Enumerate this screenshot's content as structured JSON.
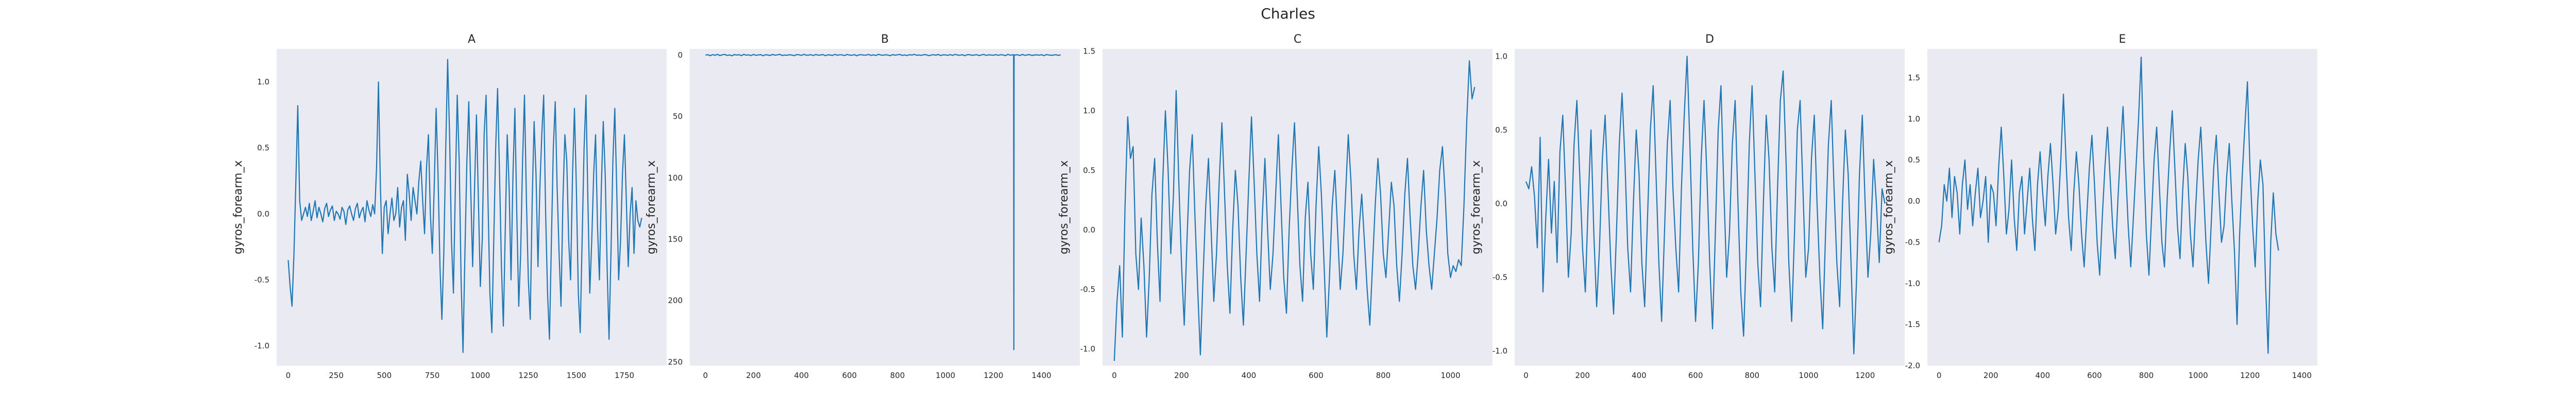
{
  "figure": {
    "title": "Charles"
  },
  "chart_data": [
    {
      "type": "line",
      "title": "A",
      "xlabel": "",
      "ylabel": "gyros_forearm_x",
      "xlim": [
        -60,
        1970
      ],
      "ylim": [
        -1.15,
        1.25
      ],
      "xticks": [
        0,
        250,
        500,
        750,
        1000,
        1250,
        1500,
        1750
      ],
      "yticks": [
        -1.0,
        -0.5,
        0.0,
        0.5,
        1.0
      ],
      "yticklabels": [
        "-1.0",
        "-0.5",
        "0.0",
        "0.5",
        "1.0"
      ],
      "grid": false,
      "series": [
        {
          "x_step": 10,
          "values": [
            -0.35,
            -0.55,
            -0.7,
            -0.3,
            0.25,
            0.82,
            0.1,
            -0.05,
            0.0,
            0.05,
            -0.02,
            0.08,
            -0.05,
            0.02,
            0.1,
            -0.03,
            0.05,
            0.0,
            -0.06,
            0.04,
            0.08,
            -0.02,
            0.03,
            0.06,
            -0.05,
            0.02,
            0.0,
            -0.04,
            0.05,
            0.02,
            -0.08,
            0.03,
            0.06,
            0.0,
            -0.05,
            0.04,
            0.08,
            -0.03,
            0.02,
            0.05,
            -0.06,
            0.1,
            0.03,
            -0.02,
            0.07,
            0.0,
            0.35,
            1.0,
            0.2,
            -0.3,
            0.05,
            0.1,
            -0.15,
            0.0,
            0.12,
            -0.05,
            0.0,
            0.2,
            -0.1,
            0.05,
            0.1,
            -0.2,
            0.3,
            0.15,
            -0.05,
            0.2,
            0.1,
            0.0,
            0.25,
            0.4,
            0.1,
            -0.15,
            0.35,
            0.6,
            0.0,
            -0.3,
            0.2,
            0.8,
            0.3,
            -0.4,
            -0.8,
            -0.3,
            0.5,
            1.17,
            0.6,
            -0.2,
            -0.6,
            0.2,
            0.9,
            0.4,
            -0.5,
            -1.05,
            -0.3,
            0.4,
            0.85,
            0.2,
            -0.4,
            0.2,
            0.75,
            0.1,
            -0.55,
            -0.2,
            0.6,
            0.9,
            0.1,
            -0.6,
            -0.9,
            -0.2,
            0.5,
            0.95,
            0.3,
            -0.4,
            -0.85,
            -0.1,
            0.6,
            0.2,
            -0.5,
            0.3,
            0.8,
            0.0,
            -0.7,
            -0.3,
            0.4,
            0.9,
            0.1,
            -0.5,
            -0.8,
            0.1,
            0.7,
            0.3,
            -0.4,
            0.2,
            0.6,
            0.9,
            0.0,
            -0.6,
            -0.95,
            -0.2,
            0.5,
            0.85,
            0.2,
            -0.3,
            -0.7,
            0.1,
            0.6,
            0.4,
            -0.2,
            -0.5,
            0.3,
            0.8,
            0.2,
            -0.6,
            -0.9,
            -0.2,
            0.5,
            0.9,
            0.1,
            -0.6,
            -0.2,
            0.3,
            0.6,
            -0.1,
            -0.5,
            0.2,
            0.7,
            0.3,
            -0.4,
            -0.95,
            -0.3,
            0.4,
            0.8,
            0.2,
            -0.5,
            -0.2,
            0.3,
            0.6,
            0.1,
            -0.4,
            0.0,
            0.2,
            -0.3,
            0.1,
            -0.05,
            -0.1,
            -0.03
          ]
        }
      ]
    },
    {
      "type": "line",
      "title": "B",
      "xlabel": "",
      "ylabel": "gyros_forearm_x",
      "xlim": [
        -65,
        1560
      ],
      "ylim": [
        -253,
        5
      ],
      "xticks": [
        0,
        200,
        400,
        600,
        800,
        1000,
        1200,
        1400
      ],
      "yticks": [
        0,
        -50,
        -100,
        -150,
        -200,
        -250
      ],
      "yticklabels": [
        "0",
        "50",
        "100",
        "150",
        "200",
        "250"
      ],
      "grid": false,
      "series": [
        {
          "x_step": 10,
          "spike": {
            "x": 1285,
            "y": -240
          },
          "values": [
            0.0,
            0.3,
            -0.5,
            0.4,
            -0.2,
            0.6,
            -0.4,
            0.2,
            0.5,
            -0.3,
            0.1,
            -0.6,
            0.4,
            0.0,
            0.3,
            -0.5,
            0.6,
            -0.1,
            0.2,
            -0.4,
            0.5,
            -0.2,
            0.1,
            0.4,
            -0.6,
            0.3,
            0.0,
            -0.3,
            0.5,
            -0.1,
            0.2,
            0.6,
            -0.4,
            0.1,
            -0.2,
            0.3,
            0.0,
            -0.5,
            0.4,
            0.2,
            -0.3,
            0.6,
            -0.1,
            0.0,
            0.3,
            -0.4,
            0.5,
            -0.2,
            0.1,
            0.4,
            -0.5,
            0.2,
            0.0,
            -0.3,
            0.6,
            -0.2,
            0.3,
            0.1,
            -0.4,
            0.5,
            0.0,
            -0.2,
            0.4,
            -0.6,
            0.2,
            0.3,
            -0.1,
            0.0,
            0.5,
            -0.3,
            0.2,
            -0.4,
            0.6,
            0.1,
            -0.2,
            0.3,
            0.0,
            -0.5,
            0.4,
            -0.1,
            0.2,
            0.5,
            -0.3,
            0.1,
            -0.4,
            0.3,
            0.0,
            0.6,
            -0.2,
            0.1,
            -0.3,
            0.4,
            0.2,
            -0.5,
            0.0,
            0.3,
            -0.1,
            0.5,
            -0.4,
            0.2,
            0.1,
            -0.2,
            0.4,
            -0.3,
            0.6,
            0.0,
            -0.1,
            0.3,
            -0.5,
            0.2,
            0.4,
            -0.2,
            0.0,
            0.3,
            -0.4,
            0.1,
            0.5,
            -0.3,
            0.2,
            0.0,
            -0.1,
            0.4,
            -0.2,
            0.3,
            0.1,
            -0.5,
            0.6,
            -0.1,
            0.2,
            0.0,
            0.3,
            -0.4,
            0.5,
            -0.2,
            0.1,
            0.4,
            -0.3,
            0.0,
            0.2,
            -0.1,
            0.3,
            -0.5,
            0.4,
            0.1,
            -0.2,
            0.0,
            0.3,
            -0.3,
            0.2
          ]
        }
      ]
    },
    {
      "type": "line",
      "title": "C",
      "xlabel": "",
      "ylabel": "gyros_forearm_x",
      "xlim": [
        -35,
        1125
      ],
      "ylim": [
        -1.14,
        1.52
      ],
      "xticks": [
        0,
        200,
        400,
        600,
        800,
        1000
      ],
      "yticks": [
        -1.0,
        -0.5,
        0.0,
        0.5,
        1.0,
        1.5
      ],
      "yticklabels": [
        "-1.0",
        "-0.5",
        "0.0",
        "0.5",
        "1.0",
        "1.5"
      ],
      "grid": false,
      "series": [
        {
          "x_step": 8,
          "values": [
            -1.1,
            -0.6,
            -0.3,
            -0.9,
            0.2,
            0.95,
            0.6,
            0.7,
            -0.2,
            -0.5,
            0.1,
            -0.3,
            -0.9,
            -0.4,
            0.3,
            0.6,
            -0.1,
            -0.6,
            0.4,
            1.0,
            0.5,
            -0.2,
            0.3,
            1.17,
            0.4,
            -0.3,
            -0.8,
            -0.1,
            0.5,
            0.8,
            0.1,
            -0.5,
            -1.05,
            -0.4,
            0.2,
            0.6,
            0.0,
            -0.6,
            -0.2,
            0.4,
            0.9,
            0.3,
            -0.3,
            -0.7,
            0.0,
            0.5,
            0.2,
            -0.4,
            -0.8,
            -0.2,
            0.4,
            0.95,
            0.4,
            -0.2,
            -0.6,
            0.1,
            0.6,
            0.0,
            -0.5,
            -0.2,
            0.3,
            0.8,
            0.2,
            -0.4,
            -0.7,
            0.0,
            0.5,
            0.9,
            0.3,
            -0.3,
            -0.6,
            0.1,
            0.4,
            -0.2,
            -0.5,
            0.2,
            0.7,
            0.3,
            -0.3,
            -0.9,
            -0.4,
            0.2,
            0.5,
            0.0,
            -0.5,
            -0.2,
            0.3,
            0.8,
            0.4,
            -0.2,
            -0.5,
            0.0,
            0.3,
            -0.1,
            -0.5,
            -0.8,
            -0.3,
            0.2,
            0.6,
            0.3,
            -0.2,
            -0.4,
            0.0,
            0.4,
            0.2,
            -0.3,
            -0.6,
            -0.2,
            0.3,
            0.6,
            0.1,
            -0.3,
            -0.5,
            -0.2,
            0.2,
            0.5,
            0.0,
            -0.3,
            -0.5,
            -0.2,
            0.1,
            0.5,
            0.7,
            0.3,
            -0.2,
            -0.4,
            -0.3,
            -0.35,
            -0.25,
            -0.3,
            0.2,
            0.9,
            1.42,
            1.1,
            1.2
          ]
        }
      ]
    },
    {
      "type": "line",
      "title": "D",
      "xlabel": "",
      "ylabel": "gyros_forearm_x",
      "xlim": [
        -40,
        1340
      ],
      "ylim": [
        -1.1,
        1.05
      ],
      "xticks": [
        0,
        200,
        400,
        600,
        800,
        1000,
        1200
      ],
      "yticks": [
        -1.0,
        -0.5,
        0.0,
        0.5,
        1.0
      ],
      "yticklabels": [
        "-1.0",
        "-0.5",
        "0.0",
        "0.5",
        "1.0"
      ],
      "grid": false,
      "series": [
        {
          "x_step": 10,
          "values": [
            0.15,
            0.1,
            0.25,
            0.05,
            -0.3,
            0.45,
            -0.6,
            -0.1,
            0.3,
            -0.2,
            0.15,
            -0.4,
            0.35,
            0.6,
            0.1,
            -0.5,
            -0.2,
            0.4,
            0.7,
            0.2,
            -0.3,
            -0.6,
            0.0,
            0.5,
            -0.2,
            -0.7,
            -0.3,
            0.3,
            0.6,
            0.1,
            -0.4,
            -0.75,
            -0.2,
            0.4,
            0.75,
            0.3,
            -0.3,
            -0.6,
            0.0,
            0.5,
            0.2,
            -0.4,
            -0.7,
            -0.1,
            0.5,
            0.8,
            0.2,
            -0.4,
            -0.8,
            -0.2,
            0.4,
            0.7,
            0.1,
            -0.3,
            -0.6,
            0.1,
            0.6,
            1.0,
            0.4,
            -0.3,
            -0.8,
            -0.4,
            0.3,
            0.7,
            0.2,
            -0.4,
            -0.85,
            -0.2,
            0.5,
            0.8,
            0.1,
            -0.5,
            -0.2,
            0.4,
            0.7,
            0.0,
            -0.6,
            -0.9,
            -0.3,
            0.4,
            0.8,
            0.2,
            -0.4,
            -0.7,
            0.0,
            0.6,
            0.3,
            -0.3,
            -0.6,
            0.1,
            0.7,
            0.9,
            0.3,
            -0.4,
            -0.8,
            -0.2,
            0.5,
            0.7,
            0.1,
            -0.5,
            -0.3,
            0.3,
            0.6,
            0.0,
            -0.5,
            -0.85,
            -0.2,
            0.4,
            0.7,
            0.1,
            -0.4,
            -0.7,
            0.0,
            0.5,
            0.2,
            -0.4,
            -1.02,
            -0.5,
            0.2,
            0.6,
            0.0,
            -0.5,
            -0.2,
            0.3,
            0.0,
            -0.4,
            0.1,
            0.0
          ]
        }
      ]
    },
    {
      "type": "line",
      "title": "E",
      "xlabel": "",
      "ylabel": "gyros_forearm_x",
      "xlim": [
        -45,
        1460
      ],
      "ylim": [
        -2.0,
        1.85
      ],
      "xticks": [
        0,
        200,
        400,
        600,
        800,
        1000,
        1200,
        1400
      ],
      "yticks": [
        -2.0,
        -1.5,
        -1.0,
        -0.5,
        0.0,
        0.5,
        1.0,
        1.5
      ],
      "yticklabels": [
        "-2.0",
        "-1.5",
        "-1.0",
        "-0.5",
        "0.0",
        "0.5",
        "1.0",
        "1.5"
      ],
      "grid": false,
      "series": [
        {
          "x_step": 10,
          "values": [
            -0.5,
            -0.3,
            0.2,
            0.0,
            0.4,
            -0.2,
            0.3,
            0.1,
            -0.4,
            0.2,
            0.5,
            -0.1,
            0.2,
            -0.3,
            0.1,
            0.4,
            -0.2,
            0.0,
            0.3,
            -0.5,
            0.2,
            0.1,
            -0.3,
            0.4,
            0.9,
            0.3,
            -0.4,
            -0.1,
            0.5,
            -0.2,
            -0.6,
            0.1,
            0.3,
            -0.4,
            0.0,
            0.4,
            -0.2,
            -0.6,
            0.2,
            0.6,
            0.1,
            -0.3,
            0.3,
            0.7,
            0.2,
            -0.4,
            -0.1,
            0.5,
            1.3,
            0.5,
            -0.2,
            -0.6,
            0.1,
            0.6,
            0.2,
            -0.4,
            -0.8,
            -0.2,
            0.4,
            0.8,
            0.2,
            -0.5,
            -0.9,
            -0.2,
            0.4,
            0.9,
            0.3,
            -0.3,
            -0.7,
            0.0,
            0.6,
            1.15,
            0.4,
            -0.3,
            -0.8,
            -0.2,
            0.4,
            1.0,
            1.75,
            0.5,
            -0.4,
            -0.9,
            -0.2,
            0.5,
            0.9,
            0.2,
            -0.5,
            -0.8,
            0.0,
            0.6,
            1.1,
            0.4,
            -0.3,
            -0.7,
            0.1,
            0.7,
            0.3,
            -0.4,
            -0.8,
            -0.1,
            0.5,
            0.9,
            0.2,
            -0.5,
            -1.0,
            -0.3,
            0.4,
            0.8,
            0.1,
            -0.5,
            -0.3,
            0.3,
            0.7,
            0.0,
            -0.6,
            -1.5,
            -0.4,
            0.3,
            0.9,
            1.45,
            0.4,
            -0.3,
            -0.8,
            0.0,
            0.5,
            0.2,
            -1.0,
            -1.85,
            -0.5,
            0.1,
            -0.4,
            -0.6
          ]
        }
      ]
    }
  ]
}
